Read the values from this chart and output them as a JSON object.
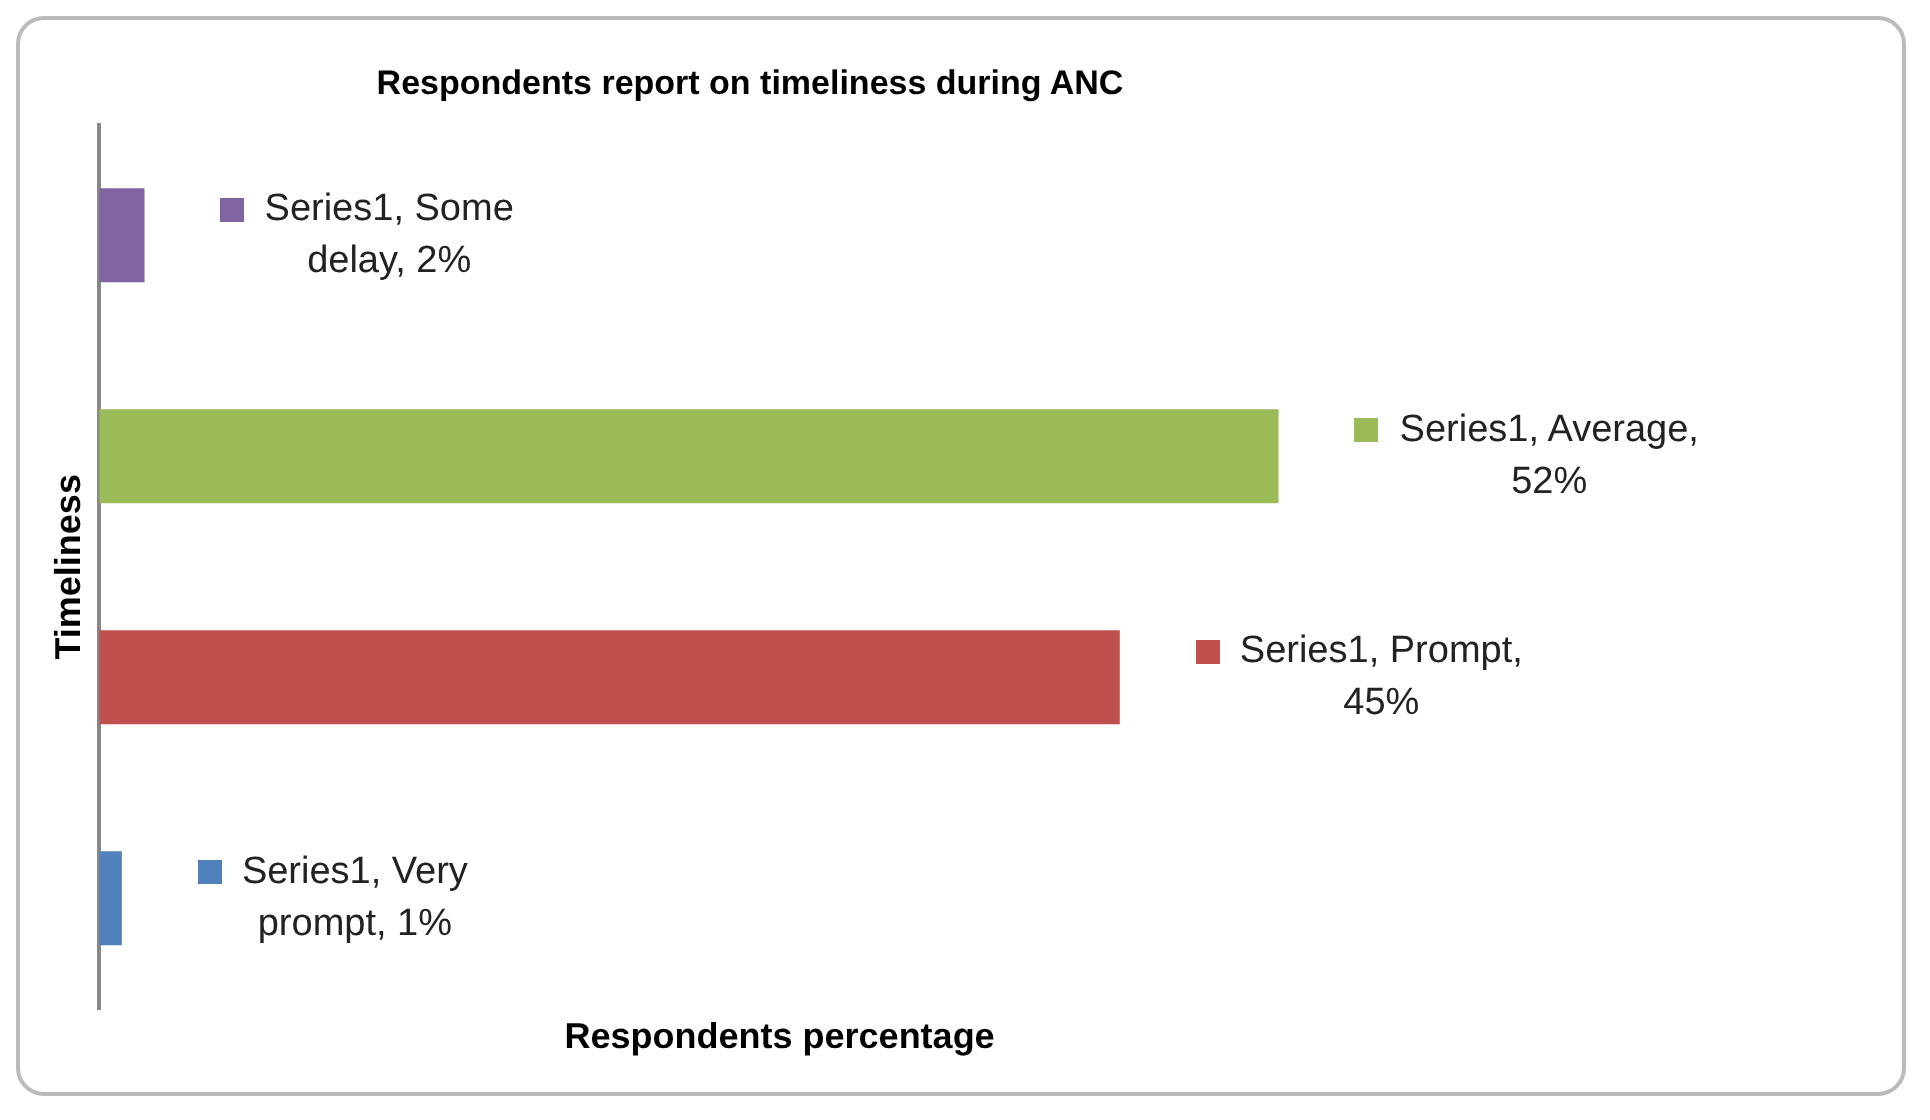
{
  "chart_data": {
    "type": "bar",
    "orientation": "horizontal",
    "title": "Respondents report on timeliness during ANC",
    "xlabel": "Respondents percentage",
    "ylabel": "Timeliness",
    "categories": [
      null,
      null,
      null,
      null
    ],
    "values": [
      2,
      52,
      45,
      1
    ],
    "colors": [
      "#8064a2",
      "#9bbb59",
      "#c0504d",
      "#4f81bd"
    ],
    "value_labels": [
      "Series1, Some delay, 2%",
      "Series1, Average, 52%",
      "Series1, Prompt, 45%",
      "Series1, Very prompt, 1%"
    ],
    "grid": false,
    "legend": false,
    "tick_labels": false
  }
}
